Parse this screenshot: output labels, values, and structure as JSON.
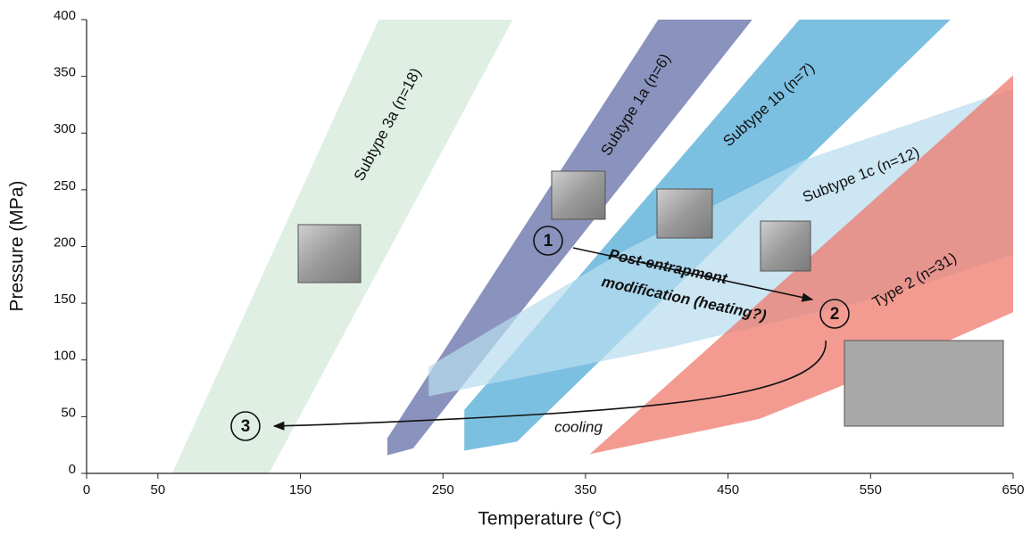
{
  "chart_data": {
    "type": "area",
    "x_label": "Temperature (°C)",
    "y_label": "Pressure (MPa)",
    "xlim": [
      0,
      650
    ],
    "xticks": [
      0,
      50,
      150,
      250,
      350,
      450,
      550,
      650
    ],
    "ylim": [
      0,
      400
    ],
    "yticks": [
      0,
      50,
      100,
      150,
      200,
      250,
      300,
      350,
      400
    ],
    "series": [
      {
        "name": "Subtype 3a (n=18)",
        "color": "#d3e9d9",
        "x": [
          60,
          205,
          299,
          128
        ],
        "values": [
          0,
          400,
          400,
          0
        ]
      },
      {
        "name": "Subtype 1a (n=6)",
        "color": "#5d6aa3",
        "x": [
          211,
          401,
          467,
          229,
          211
        ],
        "values": [
          31,
          400,
          400,
          22,
          16
        ]
      },
      {
        "name": "Subtype 1b (n=7)",
        "color": "#4aa7d6",
        "x": [
          265,
          500,
          606,
          302,
          265
        ],
        "values": [
          56,
          400,
          400,
          28,
          20
        ]
      },
      {
        "name": "Subtype 1c (n=12)",
        "color": "#b9dcee",
        "x": [
          240,
          378,
          503,
          650,
          650,
          565,
          409,
          240
        ],
        "values": [
          94,
          197,
          276,
          339,
          193,
          158,
          111,
          68
        ]
      },
      {
        "name": "Type 2 (n=31)",
        "color": "#ef7466",
        "x": [
          353,
          650,
          650,
          565,
          472
        ],
        "values": [
          17,
          351,
          142,
          95,
          48
        ]
      }
    ],
    "annotations": [
      "1",
      "2",
      "3",
      "Post-entrapment",
      "modification (heating?)",
      "cooling"
    ]
  }
}
